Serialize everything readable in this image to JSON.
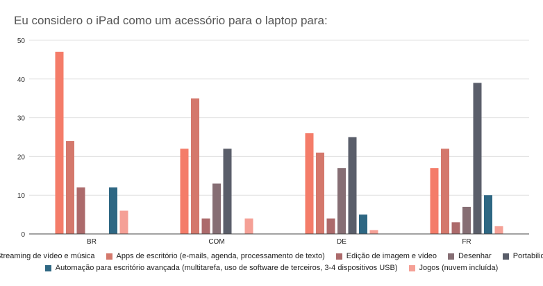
{
  "chart_data": {
    "type": "bar",
    "title": "Eu considero o iPad como um acessório para o laptop para:",
    "categories": [
      "BR",
      "COM",
      "DE",
      "FR"
    ],
    "ylim": [
      0,
      50
    ],
    "yticks": [
      0,
      10,
      20,
      30,
      40,
      50
    ],
    "grid": true,
    "legend_position": "bottom",
    "series": [
      {
        "name": "Streaming de vídeo e música",
        "color": "#f47c69",
        "values": [
          47,
          22,
          26,
          17
        ]
      },
      {
        "name": "Apps de escritório (e-mails, agenda, processamento de texto)",
        "color": "#d4786c",
        "values": [
          24,
          35,
          21,
          22
        ]
      },
      {
        "name": "Edição de imagem e vídeo",
        "color": "#ac6a6b",
        "values": [
          12,
          4,
          4,
          3
        ]
      },
      {
        "name": "Desenhar",
        "color": "#866e74",
        "values": [
          0,
          13,
          17,
          7
        ]
      },
      {
        "name": "Portabilidade",
        "color": "#5a5e6a",
        "values": [
          0,
          22,
          25,
          39
        ]
      },
      {
        "name": "Automação para escritório avançada (multitarefa, uso de software de terceiros, 3-4 dispositivos USB)",
        "color": "#2e6783",
        "values": [
          12,
          0,
          5,
          10
        ]
      },
      {
        "name": "Jogos (nuvem incluída)",
        "color": "#f5a096",
        "values": [
          6,
          4,
          1,
          2
        ]
      }
    ]
  }
}
